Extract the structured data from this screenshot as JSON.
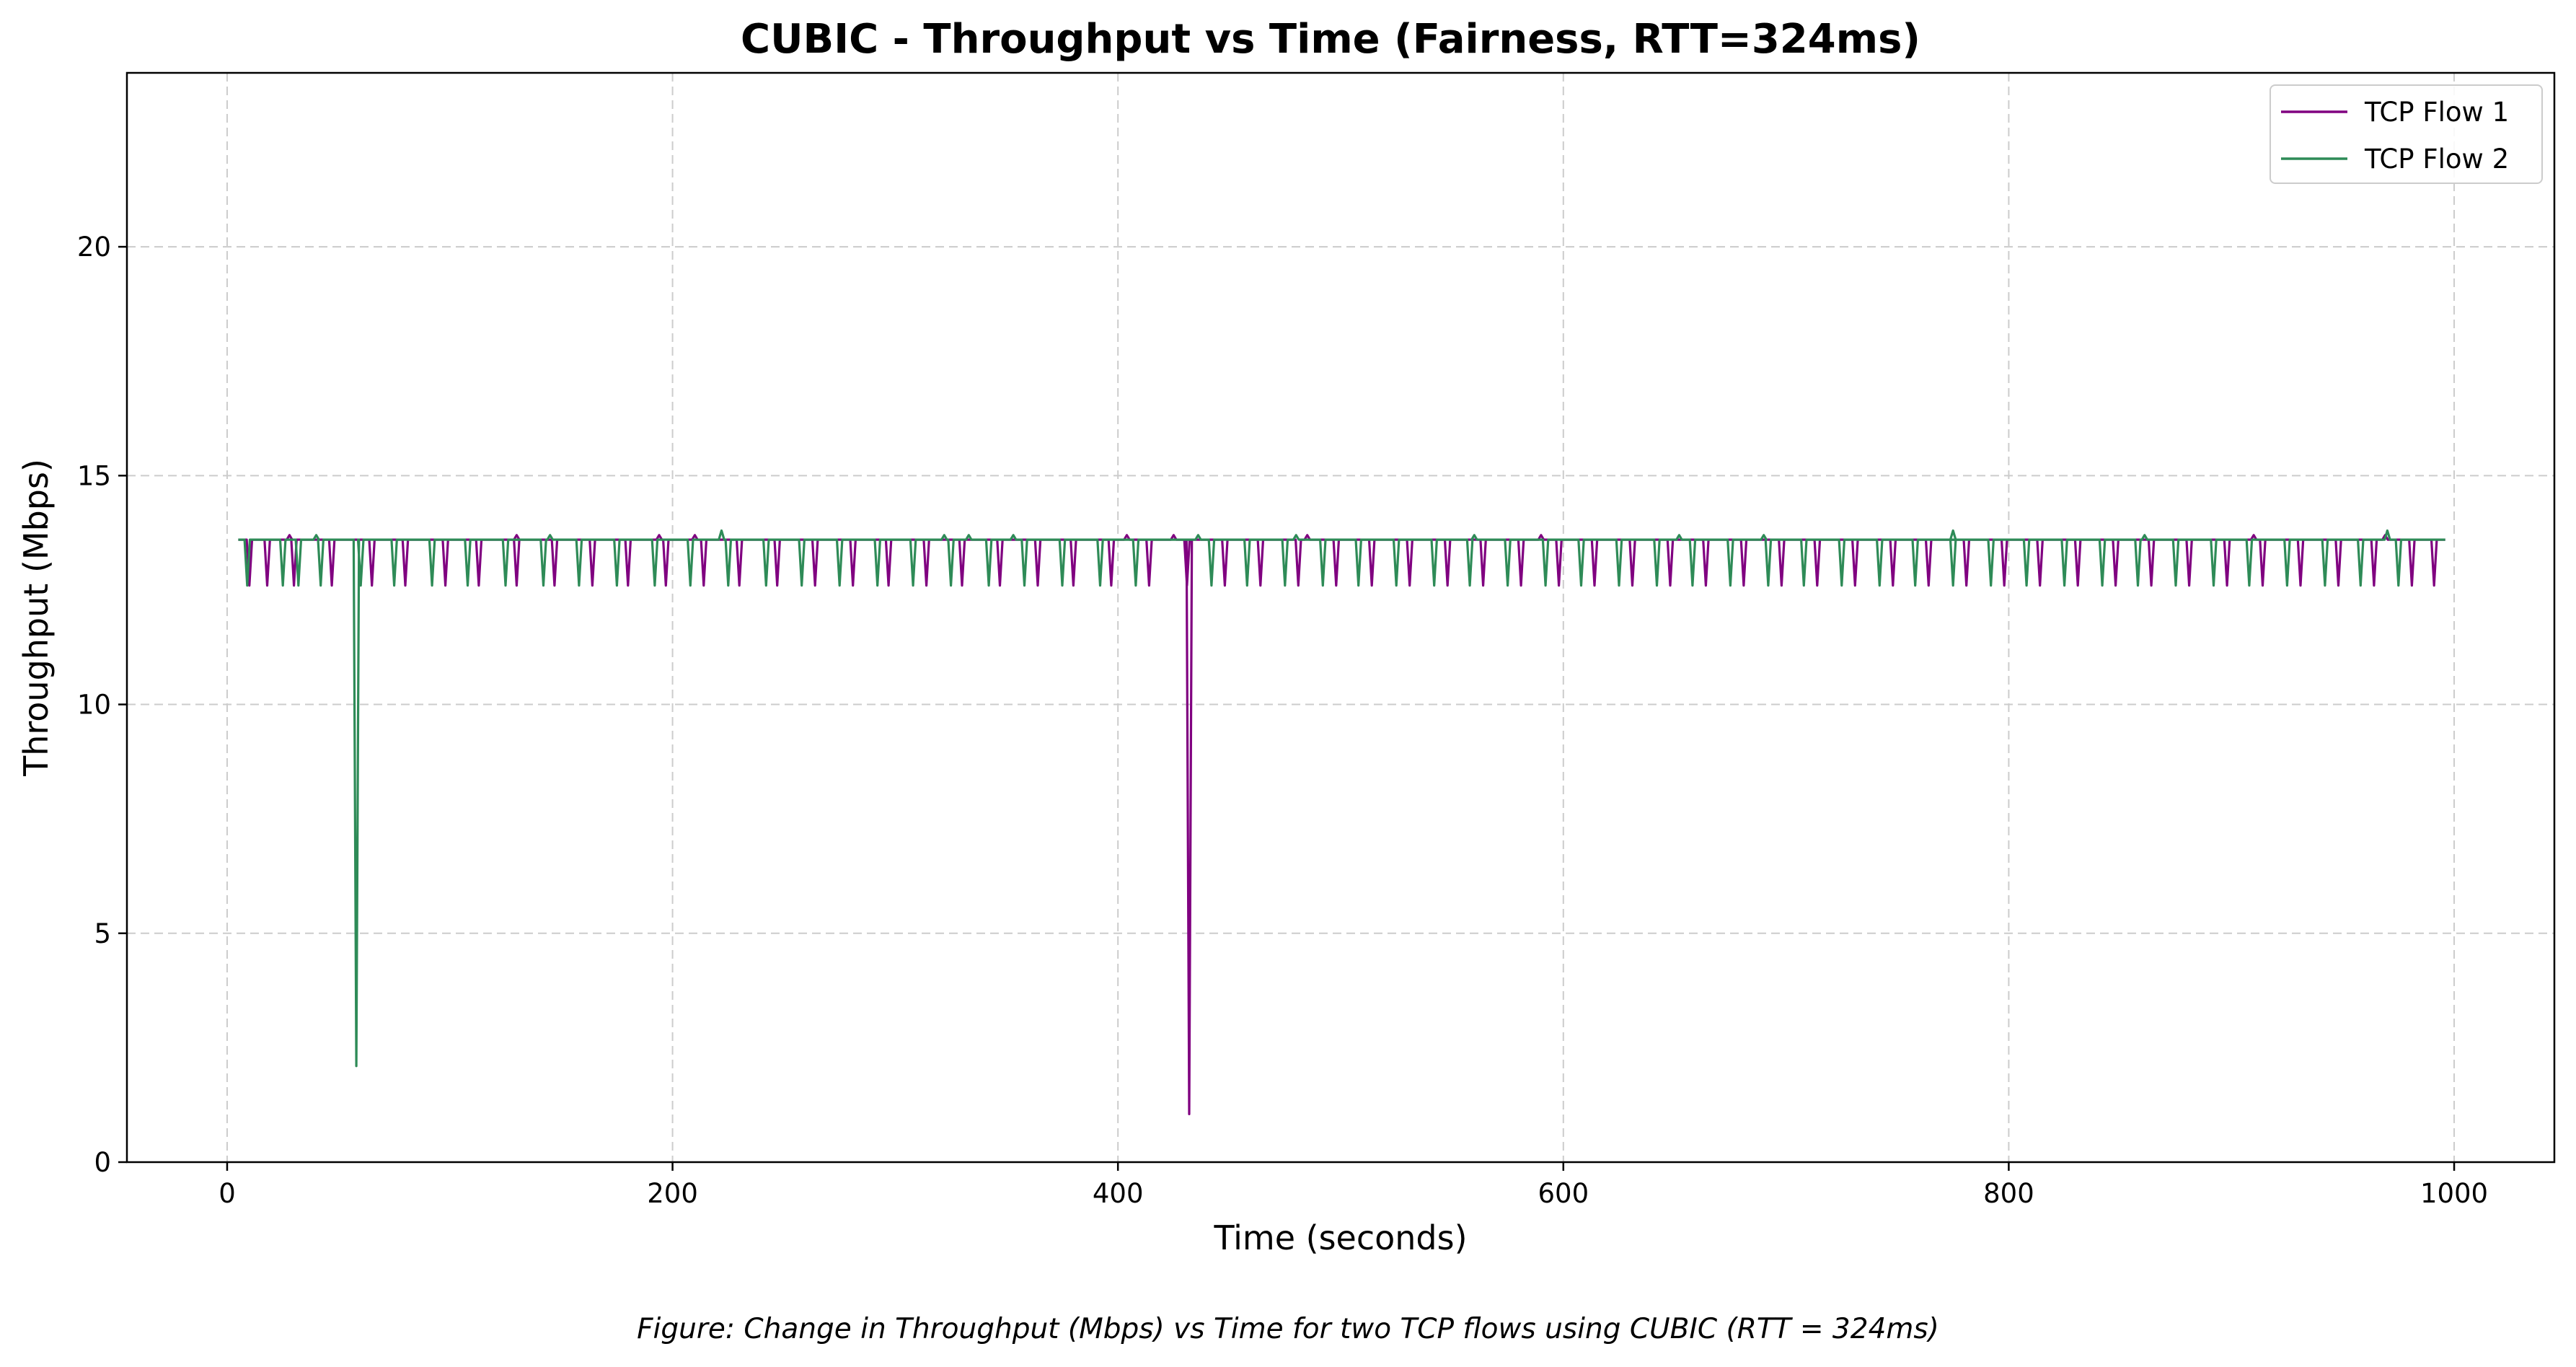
{
  "chart_data": {
    "type": "line",
    "title": "CUBIC - Throughput vs Time (Fairness, RTT=324ms)",
    "xlabel": "Time (seconds)",
    "ylabel": "Throughput (Mbps)",
    "caption": "Figure: Change in Throughput (Mbps) vs Time for two TCP flows using CUBIC (RTT = 324ms)",
    "xlim": [
      -45,
      1045
    ],
    "ylim": [
      0,
      23.8
    ],
    "xticks": [
      0,
      200,
      400,
      600,
      800,
      1000
    ],
    "yticks": [
      0,
      5,
      10,
      15,
      20
    ],
    "grid": true,
    "legend_position": "top-right",
    "x_start": 5,
    "x_end": 996,
    "baseline": 13.6,
    "series": [
      {
        "name": "TCP Flow 1",
        "color": "#800080",
        "dips": [
          [
            10,
            12.6
          ],
          [
            18,
            12.6
          ],
          [
            30,
            12.6
          ],
          [
            47,
            12.6
          ],
          [
            65,
            12.6
          ],
          [
            80,
            12.6
          ],
          [
            98,
            12.6
          ],
          [
            113,
            12.6
          ],
          [
            130,
            12.6
          ],
          [
            147,
            12.6
          ],
          [
            164,
            12.6
          ],
          [
            180,
            12.6
          ],
          [
            197,
            12.6
          ],
          [
            214,
            12.6
          ],
          [
            230,
            12.6
          ],
          [
            247,
            12.6
          ],
          [
            264,
            12.6
          ],
          [
            281,
            12.6
          ],
          [
            297,
            12.6
          ],
          [
            314,
            12.6
          ],
          [
            330,
            12.6
          ],
          [
            347,
            12.6
          ],
          [
            364,
            12.6
          ],
          [
            380,
            12.6
          ],
          [
            397,
            12.6
          ],
          [
            414,
            12.6
          ],
          [
            431,
            12.6
          ],
          [
            432,
            1.05
          ],
          [
            448,
            12.6
          ],
          [
            464,
            12.6
          ],
          [
            481,
            12.6
          ],
          [
            498,
            12.6
          ],
          [
            514,
            12.6
          ],
          [
            531,
            12.6
          ],
          [
            548,
            12.6
          ],
          [
            564,
            12.6
          ],
          [
            581,
            12.6
          ],
          [
            598,
            12.6
          ],
          [
            614,
            12.6
          ],
          [
            631,
            12.6
          ],
          [
            648,
            12.6
          ],
          [
            664,
            12.6
          ],
          [
            681,
            12.6
          ],
          [
            698,
            12.6
          ],
          [
            714,
            12.6
          ],
          [
            731,
            12.6
          ],
          [
            748,
            12.6
          ],
          [
            764,
            12.6
          ],
          [
            781,
            12.6
          ],
          [
            798,
            12.6
          ],
          [
            814,
            12.6
          ],
          [
            831,
            12.6
          ],
          [
            848,
            12.6
          ],
          [
            864,
            12.6
          ],
          [
            881,
            12.6
          ],
          [
            898,
            12.6
          ],
          [
            914,
            12.6
          ],
          [
            931,
            12.6
          ],
          [
            948,
            12.6
          ],
          [
            964,
            12.6
          ],
          [
            981,
            12.6
          ],
          [
            991,
            12.6
          ]
        ],
        "peaks": [
          [
            28,
            13.7
          ],
          [
            130,
            13.7
          ],
          [
            194,
            13.7
          ],
          [
            210,
            13.7
          ],
          [
            404,
            13.7
          ],
          [
            425,
            13.7
          ],
          [
            485,
            13.7
          ],
          [
            590,
            13.7
          ],
          [
            910,
            13.7
          ],
          [
            969,
            13.7
          ]
        ]
      },
      {
        "name": "TCP Flow 2",
        "color": "#2e8b57",
        "dips": [
          [
            9,
            12.6
          ],
          [
            25,
            12.6
          ],
          [
            32,
            12.6
          ],
          [
            42,
            12.6
          ],
          [
            58,
            2.1
          ],
          [
            60,
            12.6
          ],
          [
            75,
            12.6
          ],
          [
            92,
            12.6
          ],
          [
            108,
            12.6
          ],
          [
            125,
            12.6
          ],
          [
            142,
            12.6
          ],
          [
            158,
            12.6
          ],
          [
            175,
            12.6
          ],
          [
            192,
            12.6
          ],
          [
            208,
            12.6
          ],
          [
            225,
            12.6
          ],
          [
            242,
            12.6
          ],
          [
            258,
            12.6
          ],
          [
            275,
            12.6
          ],
          [
            292,
            12.6
          ],
          [
            308,
            12.6
          ],
          [
            325,
            12.6
          ],
          [
            342,
            12.6
          ],
          [
            358,
            12.6
          ],
          [
            375,
            12.6
          ],
          [
            392,
            12.6
          ],
          [
            408,
            12.6
          ],
          [
            442,
            12.6
          ],
          [
            458,
            12.6
          ],
          [
            475,
            12.6
          ],
          [
            492,
            12.6
          ],
          [
            508,
            12.6
          ],
          [
            525,
            12.6
          ],
          [
            542,
            12.6
          ],
          [
            558,
            12.6
          ],
          [
            575,
            12.6
          ],
          [
            592,
            12.6
          ],
          [
            608,
            12.6
          ],
          [
            625,
            12.6
          ],
          [
            642,
            12.6
          ],
          [
            658,
            12.6
          ],
          [
            675,
            12.6
          ],
          [
            692,
            12.6
          ],
          [
            708,
            12.6
          ],
          [
            725,
            12.6
          ],
          [
            742,
            12.6
          ],
          [
            758,
            12.6
          ],
          [
            775,
            12.6
          ],
          [
            792,
            12.6
          ],
          [
            808,
            12.6
          ],
          [
            825,
            12.6
          ],
          [
            842,
            12.6
          ],
          [
            858,
            12.6
          ],
          [
            875,
            12.6
          ],
          [
            892,
            12.6
          ],
          [
            908,
            12.6
          ],
          [
            925,
            12.6
          ],
          [
            942,
            12.6
          ],
          [
            958,
            12.6
          ],
          [
            975,
            12.6
          ]
        ],
        "peaks": [
          [
            40,
            13.7
          ],
          [
            145,
            13.7
          ],
          [
            222,
            13.8
          ],
          [
            322,
            13.7
          ],
          [
            333,
            13.7
          ],
          [
            353,
            13.7
          ],
          [
            436,
            13.7
          ],
          [
            480,
            13.7
          ],
          [
            560,
            13.7
          ],
          [
            652,
            13.7
          ],
          [
            690,
            13.7
          ],
          [
            775,
            13.8
          ],
          [
            861,
            13.7
          ],
          [
            970,
            13.8
          ]
        ]
      }
    ]
  }
}
